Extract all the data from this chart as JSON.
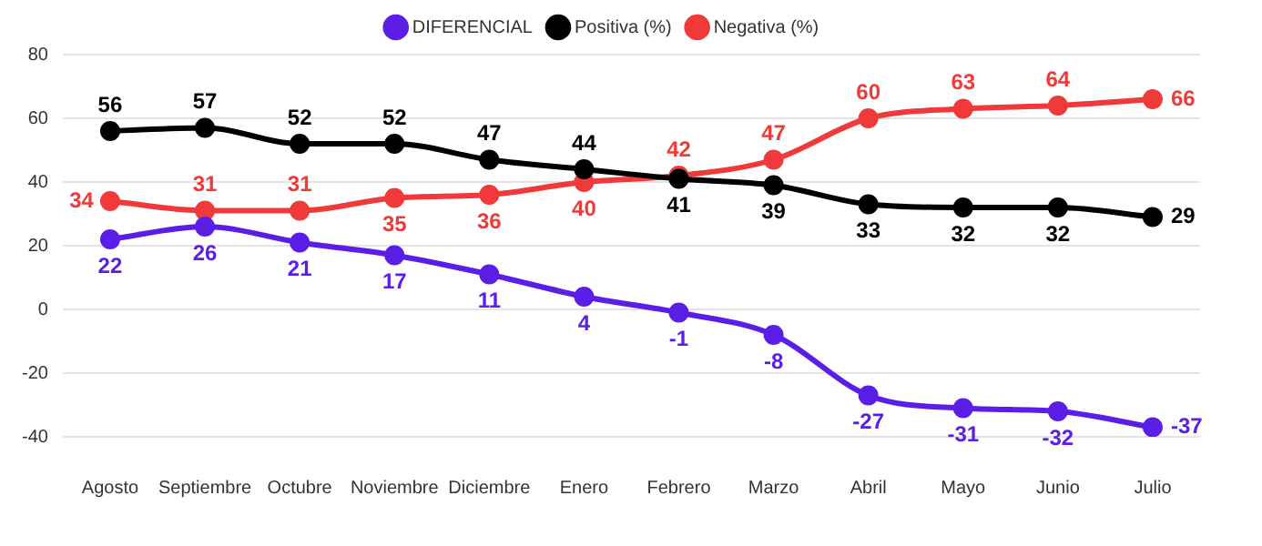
{
  "chart_data": {
    "type": "line",
    "categories": [
      "Agosto",
      "Septiembre",
      "Octubre",
      "Noviembre",
      "Diciembre",
      "Enero",
      "Febrero",
      "Marzo",
      "Abril",
      "Mayo",
      "Junio",
      "Julio"
    ],
    "series": [
      {
        "name": "DIFERENCIAL",
        "color": "#5b1ee6",
        "values": [
          22,
          26,
          21,
          17,
          11,
          4,
          -1,
          -8,
          -27,
          -31,
          -32,
          -37
        ]
      },
      {
        "name": "Positiva (%)",
        "color": "#000000",
        "values": [
          56,
          57,
          52,
          52,
          47,
          44,
          41,
          39,
          33,
          32,
          32,
          29
        ]
      },
      {
        "name": "Negativa (%)",
        "color": "#f03a3a",
        "values": [
          34,
          31,
          31,
          35,
          36,
          40,
          42,
          47,
          60,
          63,
          64,
          66
        ]
      }
    ],
    "ylim": [
      -40,
      80
    ],
    "yticks": [
      -40,
      -20,
      0,
      20,
      40,
      60,
      80
    ],
    "grid": "y",
    "legend": "top",
    "marker": "circle",
    "line_style": "solid",
    "data_labels": true
  }
}
